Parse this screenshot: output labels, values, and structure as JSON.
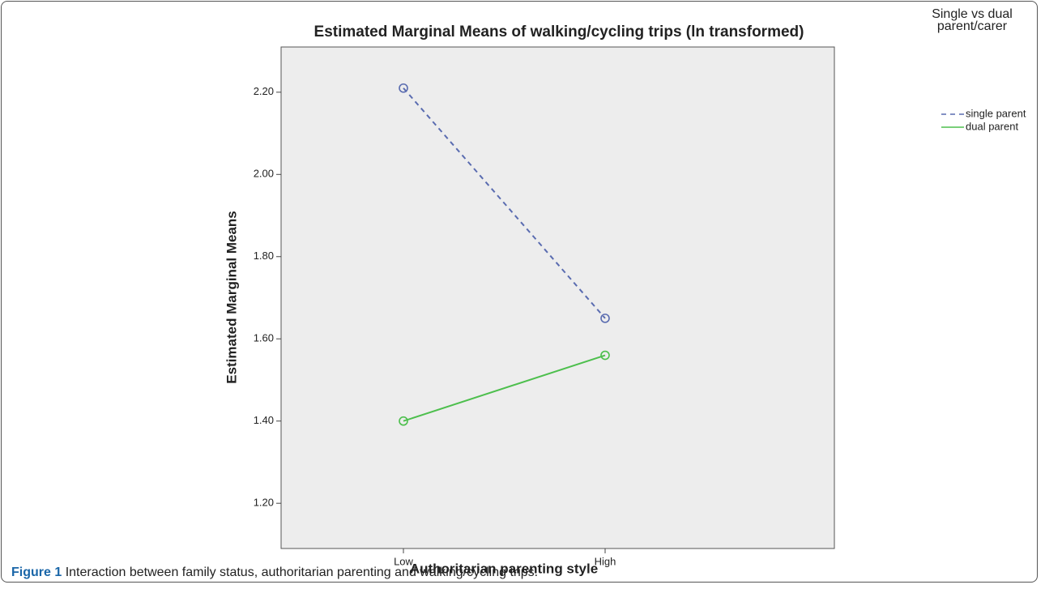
{
  "chart_data": {
    "type": "line",
    "title": "Estimated Marginal Means of walking/cycling trips (ln transformed)",
    "x_label": "Authoritarian parenting style",
    "y_label": "Estimated Marginal Means",
    "categories": [
      "Low",
      "High"
    ],
    "series": [
      {
        "name": "single parent",
        "color": "#5a6cb0",
        "dashed": true,
        "values": [
          2.21,
          1.65
        ]
      },
      {
        "name": "dual parent",
        "color": "#4dbf4d",
        "dashed": false,
        "values": [
          1.4,
          1.56
        ]
      }
    ],
    "ylim": [
      1.09,
      2.31
    ],
    "yticks": [
      {
        "value": 1.2,
        "label": "1.20"
      },
      {
        "value": 1.4,
        "label": "1.40"
      },
      {
        "value": 1.6,
        "label": "1.60"
      },
      {
        "value": 1.8,
        "label": "1.80"
      },
      {
        "value": 2.0,
        "label": "2.00"
      },
      {
        "value": 2.2,
        "label": "2.20"
      }
    ],
    "legend_title": "Single vs dual parent/carer",
    "legend_position": "right"
  },
  "caption": {
    "label": "Figure 1",
    "text": "Interaction between family status, authoritarian parenting and walking/cycling trips."
  }
}
